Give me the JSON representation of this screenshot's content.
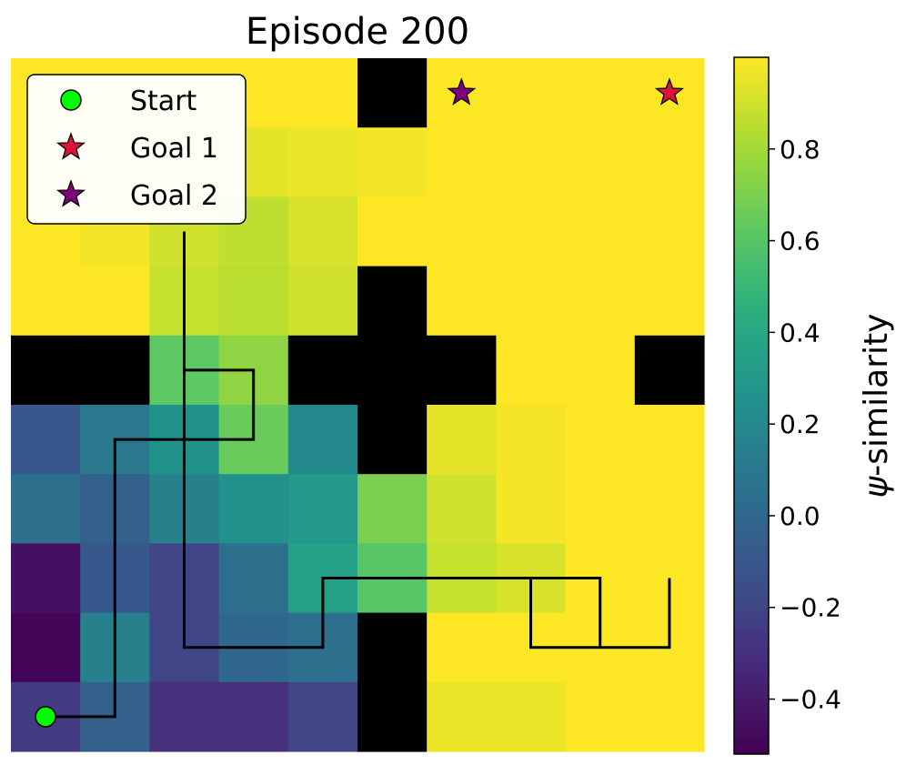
{
  "chart_data": {
    "type": "heatmap",
    "title": "Episode 200",
    "grid_size": [
      10,
      10
    ],
    "wall_color": "#000000",
    "cells": [
      [
        1.0,
        1.0,
        1.0,
        1.0,
        1.0,
        null,
        1.0,
        1.0,
        1.0,
        1.0
      ],
      [
        1.0,
        0.99,
        0.97,
        0.95,
        0.96,
        0.98,
        1.0,
        1.0,
        1.0,
        1.0
      ],
      [
        1.0,
        0.98,
        0.9,
        0.86,
        0.92,
        1.0,
        1.0,
        1.0,
        1.0,
        1.0
      ],
      [
        1.0,
        1.0,
        0.88,
        0.85,
        0.9,
        null,
        1.0,
        1.0,
        1.0,
        1.0
      ],
      [
        null,
        null,
        0.62,
        0.75,
        null,
        null,
        null,
        1.0,
        1.0,
        null
      ],
      [
        -0.1,
        0.1,
        0.25,
        0.65,
        0.2,
        null,
        0.95,
        0.98,
        1.0,
        1.0
      ],
      [
        0.05,
        -0.05,
        0.15,
        0.25,
        0.3,
        0.7,
        0.9,
        0.98,
        1.0,
        1.0
      ],
      [
        -0.45,
        -0.1,
        -0.2,
        0.05,
        0.35,
        0.6,
        0.88,
        0.92,
        1.0,
        1.0
      ],
      [
        -0.5,
        0.15,
        -0.2,
        0.0,
        0.05,
        null,
        1.0,
        1.0,
        1.0,
        1.0
      ],
      [
        -0.25,
        -0.05,
        -0.3,
        -0.3,
        -0.2,
        null,
        0.96,
        0.96,
        1.0,
        1.0
      ]
    ],
    "path": [
      [
        0.5,
        9.5
      ],
      [
        1.5,
        9.5
      ],
      [
        1.5,
        5.5
      ],
      [
        3.5,
        5.5
      ],
      [
        3.5,
        4.5
      ],
      [
        2.5,
        4.5
      ],
      [
        2.5,
        2.5
      ],
      [
        2.5,
        8.5
      ],
      [
        4.5,
        8.5
      ],
      [
        4.5,
        7.5
      ],
      [
        8.5,
        7.5
      ],
      [
        8.5,
        8.5
      ],
      [
        7.5,
        8.5
      ],
      [
        7.5,
        7.5
      ],
      [
        7.5,
        8.5
      ],
      [
        9.5,
        8.5
      ],
      [
        9.5,
        7.5
      ]
    ],
    "start": {
      "label": "Start",
      "x": 0.5,
      "y": 9.5,
      "color": "#00ff00"
    },
    "goals": [
      {
        "label": "Goal 1",
        "x": 9.5,
        "y": 0.5,
        "color": "#dc143c"
      },
      {
        "label": "Goal 2",
        "x": 6.5,
        "y": 0.5,
        "color": "#800080"
      }
    ],
    "colorbar": {
      "label": "ψ-similarity",
      "range": [
        -0.52,
        1.0
      ],
      "ticks": [
        0.8,
        0.6,
        0.4,
        0.2,
        0.0,
        -0.2,
        -0.4
      ],
      "tick_labels": [
        "0.8",
        "0.6",
        "0.4",
        "0.2",
        "0.0",
        "−0.2",
        "−0.4"
      ],
      "colormap": "viridis"
    },
    "legend": {
      "position": "top-left",
      "items": [
        "Start",
        "Goal 1",
        "Goal 2"
      ]
    }
  }
}
